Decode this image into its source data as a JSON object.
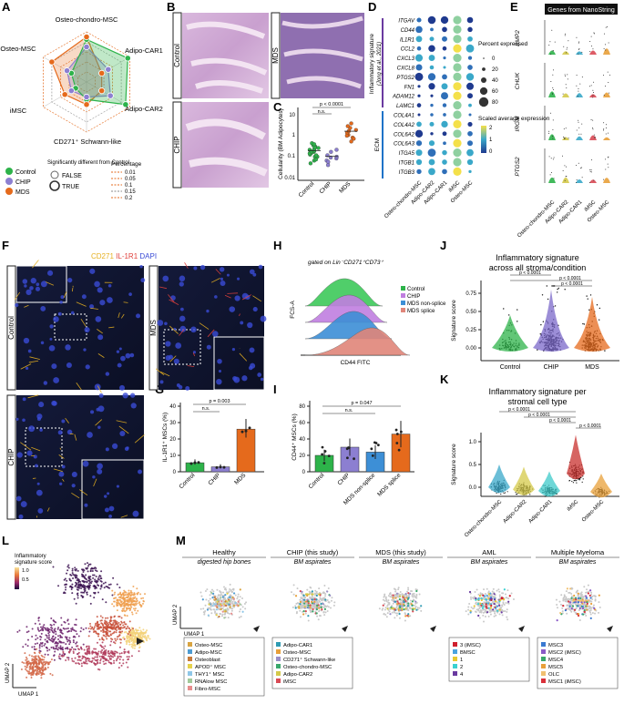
{
  "panel_labels": [
    "A",
    "B",
    "C",
    "D",
    "E",
    "F",
    "G",
    "H",
    "I",
    "J",
    "K",
    "L",
    "M"
  ],
  "colors": {
    "control": "#2db34a",
    "chip": "#8c7fd1",
    "mds": "#e56a1c",
    "mds_nonsplice": "#3d8fd6",
    "mds_splice": "#e0867a",
    "il1r1": "#e0413c",
    "cd271": "#e6b020",
    "dapi": "#3a4bd6"
  },
  "panelA": {
    "axes": [
      "Osteo-chondro-MSC",
      "Adipo-CAR1",
      "Adipo-CAR2",
      "CD271⁺ Schwann-like",
      "iMSC",
      "Osteo-MSC"
    ],
    "legend_groups": [
      "Control",
      "CHIP",
      "MDS"
    ],
    "sig_title": "Significantly different from Control",
    "sig_values": [
      "FALSE",
      "TRUE"
    ],
    "pct_title": "Percentage",
    "pct_values": [
      "0.01",
      "0.05",
      "0.1",
      "0.15",
      "0.2"
    ]
  },
  "panelB": {
    "labels": [
      "Control",
      "MDS",
      "CHIP"
    ]
  },
  "panelC": {
    "ylabel": "Cellularity (BM Adipocytes)",
    "yticks": [
      "10",
      "1",
      "0.1",
      "0.01"
    ],
    "groups": [
      "Control",
      "CHIP",
      "MDS"
    ],
    "pval": "p < 0.0001",
    "ns": "n.s."
  },
  "panelD": {
    "genes": [
      "ITGAV",
      "CD44",
      "IL1R1",
      "CCL2",
      "CXCL3",
      "CXCL8",
      "PTGS2",
      "FN1",
      "ADAM12",
      "LAMC1",
      "COL4A1",
      "COL4A2",
      "COL6A2",
      "COL6A3",
      "ITGA5",
      "ITGB1",
      "ITGB3"
    ],
    "clusters": [
      "Osteo-chondro-MSC",
      "Adipo-CAR2",
      "Adipo-CAR1",
      "iMSC",
      "Osteo-MSC"
    ],
    "group1": "Inflammatory signature",
    "group1_ref": "(Jong et al., 2021)",
    "group2": "ECM",
    "size_title": "Percent expressed",
    "size_values": [
      "0",
      "20",
      "40",
      "60",
      "80"
    ],
    "color_title": "Scaled average expression",
    "color_values": [
      "2",
      "1",
      "0"
    ]
  },
  "panelE": {
    "title": "Genes from NanoString",
    "genes": [
      "BMP2",
      "CHUK",
      "IRGM",
      "PTGS2"
    ],
    "clusters": [
      "Osteo-chondro-MSC",
      "Adipo-CAR2",
      "Adipo-CAR1",
      "iMSC",
      "Osteo-MSC"
    ]
  },
  "panelF": {
    "stain_cd271": "CD271",
    "stain_il1r1": "IL-1R1",
    "stain_dapi": "DAPI",
    "labels": [
      "Control",
      "MDS",
      "CHIP"
    ]
  },
  "panelG": {
    "ylabel": "IL-1R1⁺ MSCs (%)",
    "yticks": [
      "0",
      "10",
      "20",
      "30",
      "40"
    ],
    "groups": [
      "Control",
      "CHIP",
      "MDS"
    ],
    "pval": "p = 0.003",
    "ns": "n.s."
  },
  "panelH": {
    "title": "gated on Lin⁻CD271⁺CD73⁺",
    "ylabel": "FCS-A",
    "xlabel": "CD44 FITC",
    "legend": [
      "Control",
      "CHIP",
      "MDS non-splice",
      "MDS splice"
    ]
  },
  "panelI": {
    "ylabel": "CD44⁺ MSCs (%)",
    "yticks": [
      "0",
      "20",
      "40",
      "60",
      "80"
    ],
    "groups": [
      "Control",
      "CHIP",
      "MDS non-splice",
      "MDS splice"
    ],
    "pval": "p = 0.047",
    "ns": "n.s."
  },
  "panelJ": {
    "title1": "Inflammatory signature",
    "title2": "across all stroma/condition",
    "ylabel": "Signature score",
    "yticks": [
      "0.00",
      "0.25",
      "0.50",
      "0.75"
    ],
    "groups": [
      "Control",
      "CHIP",
      "MDS"
    ],
    "pvals": [
      "p < 0.0001",
      "p < 0.0001",
      "p < 0.0001"
    ]
  },
  "panelK": {
    "title1": "Inflammatory signature per",
    "title2": "stromal cell type",
    "ylabel": "Signature score",
    "yticks": [
      "0.0",
      "0.5",
      "1.0"
    ],
    "groups": [
      "Osteo-chondro-MSC",
      "Adipo-CAR2",
      "Adipo-CAR1",
      "iMSC",
      "Osteo-MSC"
    ],
    "pvals": [
      "p < 0.0001",
      "p < 0.0001",
      "p < 0.0001",
      "p < 0.0001"
    ]
  },
  "panelL": {
    "legend_title1": "Inflammatory",
    "legend_title2": "signature score",
    "legend_values": [
      "1.0",
      "0.5"
    ],
    "x": "UMAP 1",
    "y": "UMAP 2"
  },
  "panelM": {
    "x": "UMAP 1",
    "y": "UMAP 2",
    "datasets": [
      {
        "title": "Healthy",
        "sub": "digested hip bones",
        "legend": [
          [
            "Osteo-MSC",
            "#d9a441"
          ],
          [
            "Adipo-MSC",
            "#4d9bd1"
          ],
          [
            "Osteoblast",
            "#c77a3a"
          ],
          [
            "APOD⁺ MSC",
            "#e6d24a"
          ],
          [
            "THY1⁺ MSC",
            "#8fc7e8"
          ],
          [
            "RNAlow MSC",
            "#a2c99a"
          ],
          [
            "Fibro-MSC",
            "#e88e8e"
          ]
        ]
      },
      {
        "title": "CHIP (this study)",
        "sub": "BM aspirates",
        "legend": [
          [
            "Adipo-CAR1",
            "#2f9bb3"
          ],
          [
            "Osteo-MSC",
            "#e8a03a"
          ],
          [
            "CD271⁺ Schwann-like",
            "#9a8ec7"
          ],
          [
            "Osteo-chondro-MSC",
            "#3aa86b"
          ],
          [
            "Adipo-CAR2",
            "#d4c94a"
          ],
          [
            "iMSC",
            "#d94a55"
          ]
        ]
      },
      {
        "title": "MDS (this study)",
        "sub": "BM aspirates",
        "legend": []
      },
      {
        "title": "AML",
        "sub": "BM aspirates",
        "legend": [
          [
            "3 (iMSC)",
            "#cf1f2e"
          ],
          [
            "BMSC",
            "#4aa3e0"
          ],
          [
            "1",
            "#e8c930"
          ],
          [
            "2",
            "#3ad1d1"
          ],
          [
            "4",
            "#6a3aa0"
          ]
        ]
      },
      {
        "title": "Multiple Myeloma",
        "sub": "BM aspirates",
        "legend": [
          [
            "MSC3",
            "#3a7ad1"
          ],
          [
            "MSC2 (iMSC)",
            "#8a5ac7"
          ],
          [
            "MSC4",
            "#3aa86b"
          ],
          [
            "MSC5",
            "#e8a03a"
          ],
          [
            "OLC",
            "#f0c070"
          ],
          [
            "MSC1 (iMSC)",
            "#d9303a"
          ]
        ]
      }
    ]
  }
}
